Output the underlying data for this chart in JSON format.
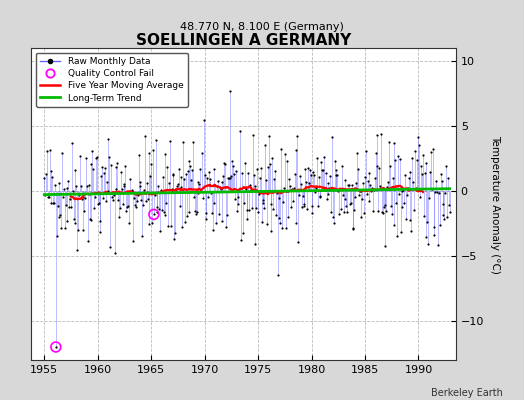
{
  "title": "SOELLINGEN A GERMANY",
  "subtitle": "48.770 N, 8.100 E (Germany)",
  "ylabel": "Temperature Anomaly (°C)",
  "credit": "Berkeley Earth",
  "xlim": [
    1953.8,
    1993.5
  ],
  "ylim": [
    -13,
    11
  ],
  "yticks": [
    -10,
    -5,
    0,
    5,
    10
  ],
  "xticks": [
    1955,
    1960,
    1965,
    1970,
    1975,
    1980,
    1985,
    1990
  ],
  "background_color": "#d8d8d8",
  "plot_bg_color": "#ffffff",
  "line_color": "#6666ff",
  "dot_color": "#000000",
  "moving_avg_color": "#ff0000",
  "trend_color": "#00bb00",
  "qc_fail_color": "#ff00ff",
  "seed": 42,
  "n_years": 38,
  "start_year": 1955,
  "long_term_slope": 0.012,
  "long_term_intercept": -0.05,
  "moving_avg_window": 60
}
